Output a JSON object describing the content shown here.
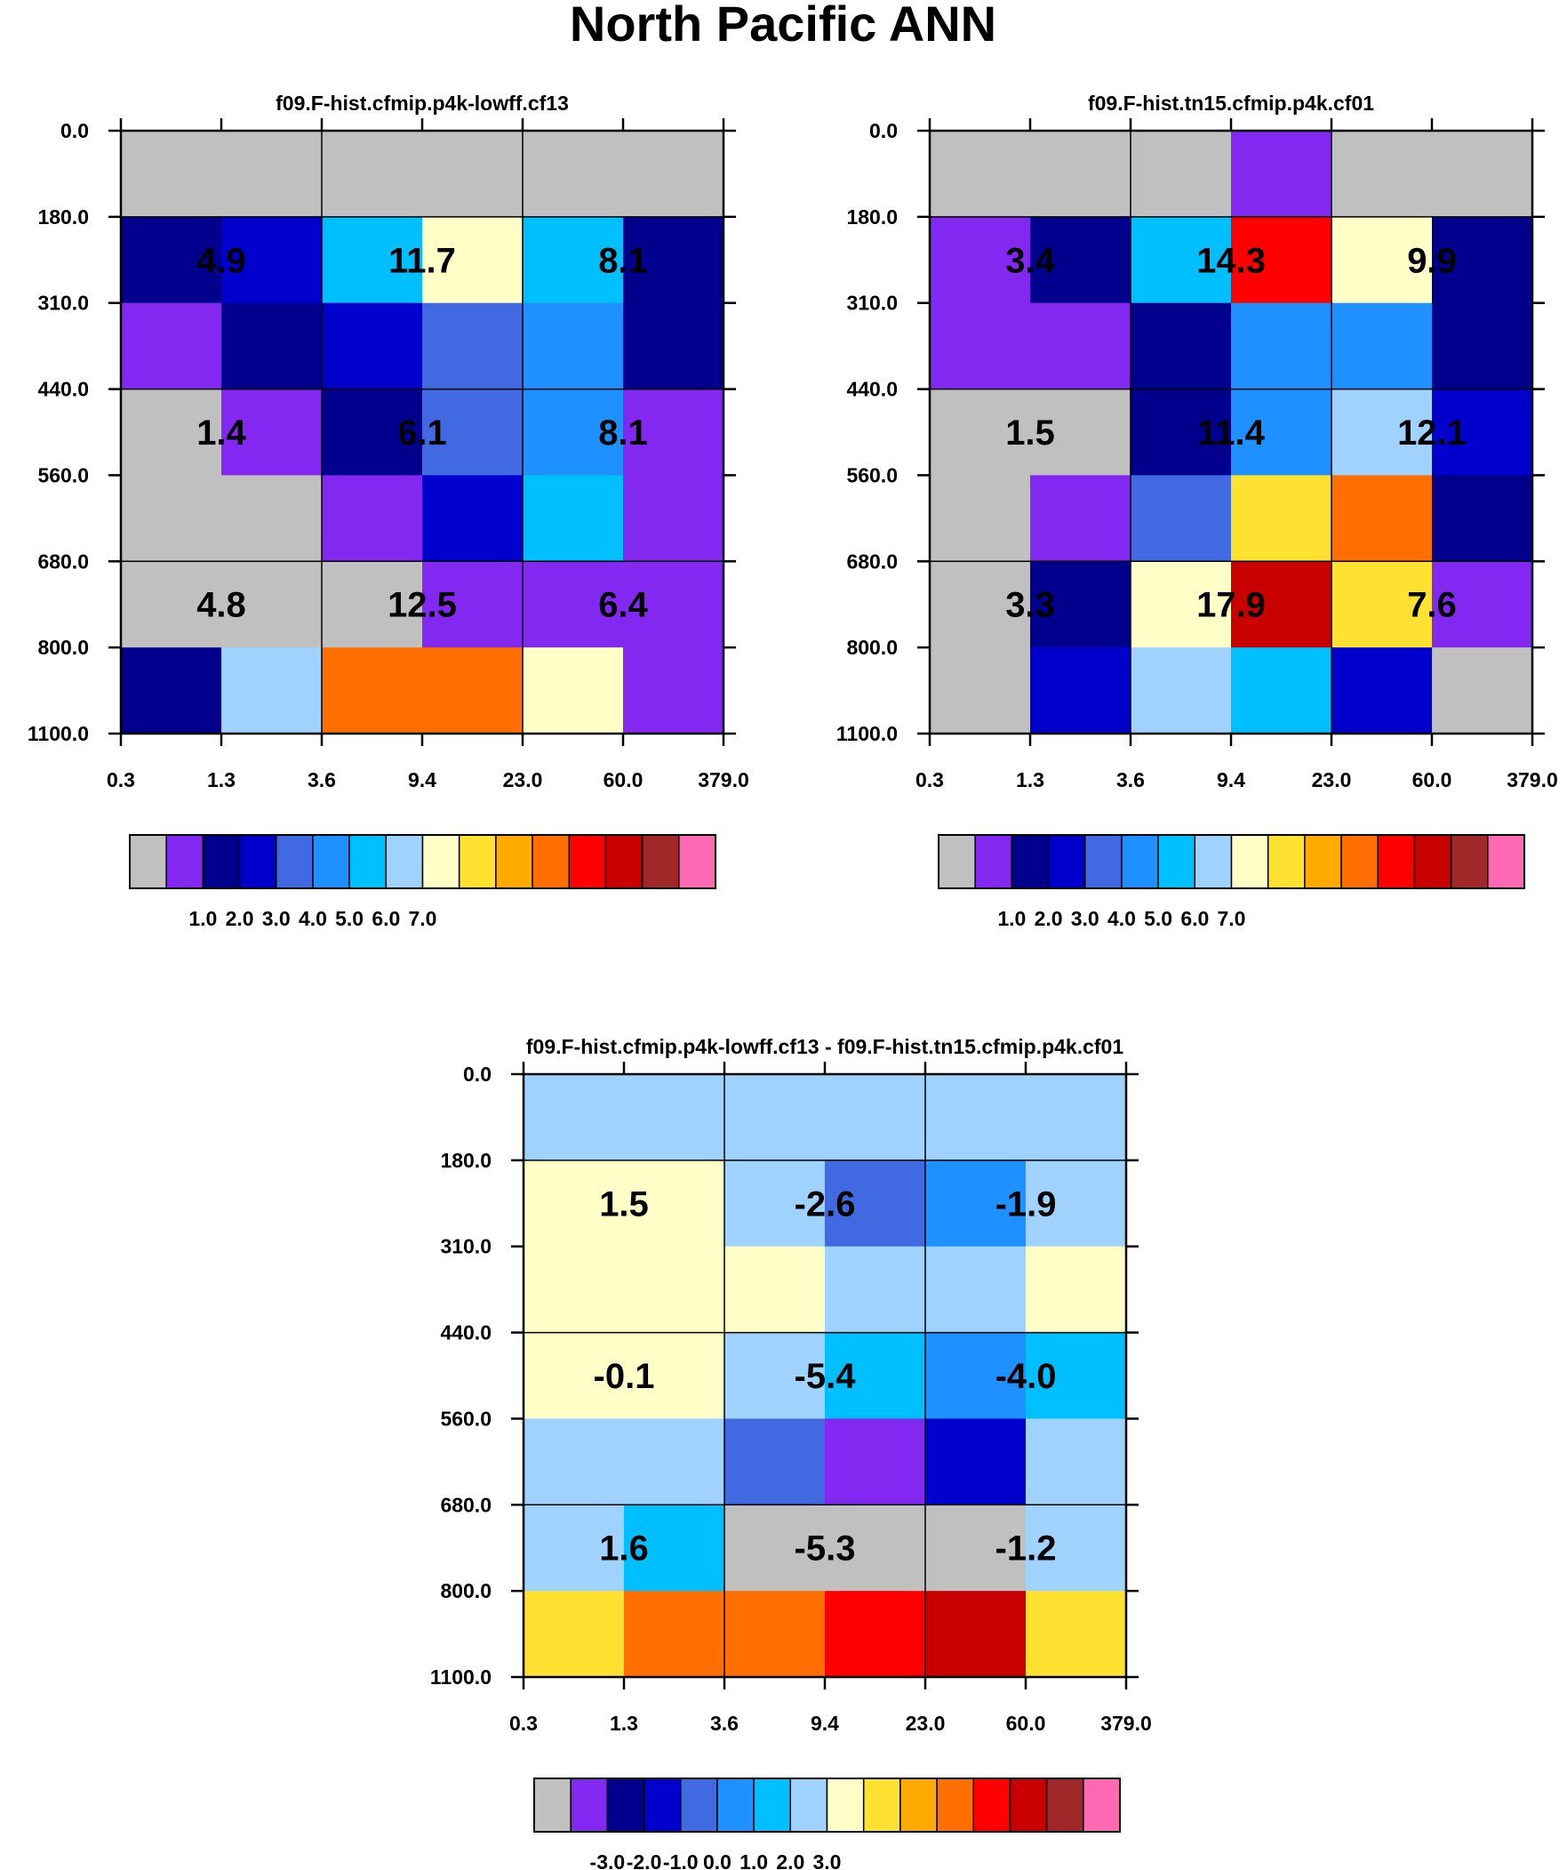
{
  "page_title": "North Pacific ANN",
  "colors": {
    "palette": [
      "#c0c0c0",
      "#8228f0",
      "#00008c",
      "#0000cd",
      "#4169e1",
      "#1e90ff",
      "#00bfff",
      "#a0d2ff",
      "#ffffc8",
      "#ffe132",
      "#ffaa00",
      "#ff6e00",
      "#ff0000",
      "#c80000",
      "#a02828",
      "#ff69b4"
    ],
    "axis": "#000000",
    "background": "#ffffff"
  },
  "chart_data": [
    {
      "type": "heatmap",
      "title": "f09.F-hist.cfmip.p4k-lowff.cf13",
      "x_ticks": [
        "0.3",
        "1.3",
        "3.6",
        "9.4",
        "23.0",
        "60.0",
        "379.0"
      ],
      "y_ticks": [
        "0.0",
        "180.0",
        "310.0",
        "440.0",
        "560.0",
        "680.0",
        "800.0",
        "1100.0"
      ],
      "cells": [
        [
          0,
          0,
          0,
          0,
          0,
          0
        ],
        [
          2,
          3,
          6,
          8,
          6,
          2
        ],
        [
          1,
          2,
          3,
          4,
          5,
          2
        ],
        [
          0,
          1,
          2,
          4,
          5,
          1
        ],
        [
          0,
          0,
          1,
          3,
          6,
          1
        ],
        [
          0,
          0,
          0,
          1,
          1,
          1
        ],
        [
          2,
          7,
          11,
          11,
          8,
          1
        ]
      ],
      "totals": [
        {
          "label": "4.9",
          "row": 1,
          "col": 0
        },
        {
          "label": "11.7",
          "row": 1,
          "col": 1
        },
        {
          "label": "8.1",
          "row": 1,
          "col": 2
        },
        {
          "label": "1.4",
          "row": 3,
          "col": 0
        },
        {
          "label": "6.1",
          "row": 3,
          "col": 1
        },
        {
          "label": "8.1",
          "row": 3,
          "col": 2
        },
        {
          "label": "4.8",
          "row": 5,
          "col": 0
        },
        {
          "label": "12.5",
          "row": 5,
          "col": 1
        },
        {
          "label": "6.4",
          "row": 5,
          "col": 2
        }
      ],
      "colorbar_labels": [
        "1.0",
        "2.0",
        "3.0",
        "4.0",
        "5.0",
        "6.0",
        "7.0"
      ],
      "colorbar_colors": [
        0,
        1,
        2,
        3,
        4,
        5,
        6,
        7,
        8,
        9,
        10,
        11,
        12,
        13,
        14,
        15
      ]
    },
    {
      "type": "heatmap",
      "title": "f09.F-hist.tn15.cfmip.p4k.cf01",
      "x_ticks": [
        "0.3",
        "1.3",
        "3.6",
        "9.4",
        "23.0",
        "60.0",
        "379.0"
      ],
      "y_ticks": [
        "0.0",
        "180.0",
        "310.0",
        "440.0",
        "560.0",
        "680.0",
        "800.0",
        "1100.0"
      ],
      "cells": [
        [
          0,
          0,
          0,
          1,
          0,
          0
        ],
        [
          1,
          2,
          6,
          12,
          8,
          2
        ],
        [
          1,
          1,
          2,
          5,
          5,
          2
        ],
        [
          0,
          0,
          2,
          5,
          7,
          3
        ],
        [
          0,
          1,
          4,
          9,
          11,
          2
        ],
        [
          0,
          2,
          8,
          13,
          9,
          1
        ],
        [
          0,
          3,
          7,
          6,
          3,
          0
        ]
      ],
      "totals": [
        {
          "label": "3.4",
          "row": 1,
          "col": 0
        },
        {
          "label": "14.3",
          "row": 1,
          "col": 1
        },
        {
          "label": "9.9",
          "row": 1,
          "col": 2
        },
        {
          "label": "1.5",
          "row": 3,
          "col": 0
        },
        {
          "label": "11.4",
          "row": 3,
          "col": 1
        },
        {
          "label": "12.1",
          "row": 3,
          "col": 2
        },
        {
          "label": "3.3",
          "row": 5,
          "col": 0
        },
        {
          "label": "17.9",
          "row": 5,
          "col": 1
        },
        {
          "label": "7.6",
          "row": 5,
          "col": 2
        }
      ],
      "colorbar_labels": [
        "1.0",
        "2.0",
        "3.0",
        "4.0",
        "5.0",
        "6.0",
        "7.0"
      ],
      "colorbar_colors": [
        0,
        1,
        2,
        3,
        4,
        5,
        6,
        7,
        8,
        9,
        10,
        11,
        12,
        13,
        14,
        15
      ]
    },
    {
      "type": "heatmap",
      "title": "f09.F-hist.cfmip.p4k-lowff.cf13 - f09.F-hist.tn15.cfmip.p4k.cf01",
      "x_ticks": [
        "0.3",
        "1.3",
        "3.6",
        "9.4",
        "23.0",
        "60.0",
        "379.0"
      ],
      "y_ticks": [
        "0.0",
        "180.0",
        "310.0",
        "440.0",
        "560.0",
        "680.0",
        "800.0",
        "1100.0"
      ],
      "cells": [
        [
          7,
          7,
          7,
          7,
          7,
          7
        ],
        [
          8,
          8,
          7,
          4,
          5,
          7
        ],
        [
          8,
          8,
          8,
          7,
          7,
          8
        ],
        [
          8,
          8,
          7,
          6,
          5,
          6
        ],
        [
          7,
          7,
          4,
          1,
          3,
          7
        ],
        [
          7,
          6,
          0,
          0,
          0,
          7
        ],
        [
          9,
          11,
          11,
          12,
          13,
          9
        ]
      ],
      "totals": [
        {
          "label": "1.5",
          "row": 1,
          "col": 0
        },
        {
          "label": "-2.6",
          "row": 1,
          "col": 1
        },
        {
          "label": "-1.9",
          "row": 1,
          "col": 2
        },
        {
          "label": "-0.1",
          "row": 3,
          "col": 0
        },
        {
          "label": "-5.4",
          "row": 3,
          "col": 1
        },
        {
          "label": "-4.0",
          "row": 3,
          "col": 2
        },
        {
          "label": "1.6",
          "row": 5,
          "col": 0
        },
        {
          "label": "-5.3",
          "row": 5,
          "col": 1
        },
        {
          "label": "-1.2",
          "row": 5,
          "col": 2
        }
      ],
      "colorbar_labels": [
        "-3.0",
        "-2.0",
        "-1.0",
        "0.0",
        "1.0",
        "2.0",
        "3.0"
      ],
      "colorbar_colors": [
        0,
        1,
        2,
        3,
        4,
        5,
        6,
        7,
        8,
        9,
        10,
        11,
        12,
        13,
        14,
        15
      ]
    }
  ]
}
